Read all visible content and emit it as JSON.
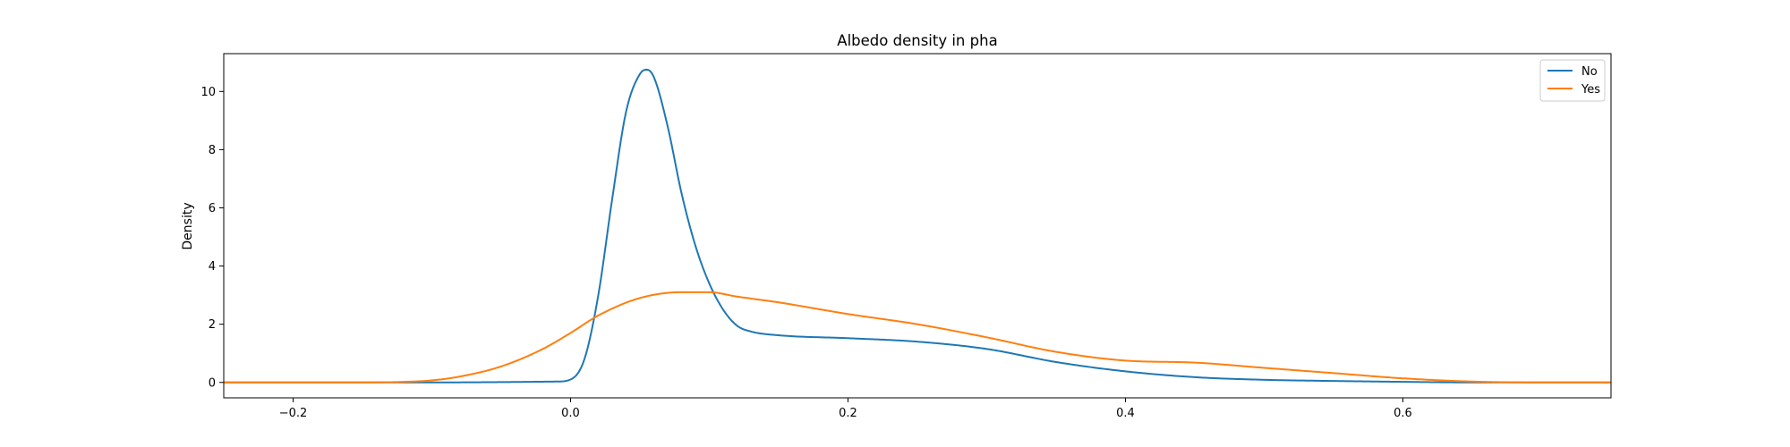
{
  "chart_data": {
    "type": "line",
    "title": "Albedo density in pha",
    "xlabel": "",
    "ylabel": "Density",
    "xlim": [
      -0.25,
      0.75
    ],
    "ylim": [
      -0.53,
      11.3
    ],
    "x_ticks": [
      -0.2,
      0.0,
      0.2,
      0.4,
      0.6
    ],
    "x_tick_labels": [
      "−0.2",
      "0.0",
      "0.2",
      "0.4",
      "0.6"
    ],
    "y_ticks": [
      0,
      2,
      4,
      6,
      8,
      10
    ],
    "y_tick_labels": [
      "0",
      "2",
      "4",
      "6",
      "8",
      "10"
    ],
    "grid": false,
    "legend_position": "top-right",
    "series": [
      {
        "name": "No",
        "color": "#1f77b4",
        "x": [
          -0.25,
          -0.1,
          -0.01,
          0.0,
          0.01,
          0.02,
          0.03,
          0.04,
          0.05,
          0.055,
          0.06,
          0.07,
          0.08,
          0.09,
          0.1,
          0.11,
          0.12,
          0.13,
          0.15,
          0.2,
          0.25,
          0.3,
          0.35,
          0.4,
          0.45,
          0.5,
          0.55,
          0.6,
          0.65,
          0.75
        ],
        "y": [
          0,
          0,
          0.03,
          0.1,
          0.8,
          3.0,
          6.3,
          9.3,
          10.6,
          10.75,
          10.5,
          8.8,
          6.5,
          4.7,
          3.4,
          2.5,
          1.95,
          1.75,
          1.62,
          1.52,
          1.4,
          1.15,
          0.7,
          0.38,
          0.18,
          0.09,
          0.05,
          0.02,
          0.0,
          0.0
        ]
      },
      {
        "name": "Yes",
        "color": "#ff7f0e",
        "x": [
          -0.25,
          -0.15,
          -0.12,
          -0.1,
          -0.08,
          -0.05,
          -0.02,
          0.0,
          0.02,
          0.05,
          0.08,
          0.1,
          0.12,
          0.15,
          0.2,
          0.25,
          0.3,
          0.35,
          0.4,
          0.45,
          0.5,
          0.55,
          0.6,
          0.65,
          0.7,
          0.75
        ],
        "y": [
          0.0,
          0.0,
          0.02,
          0.07,
          0.2,
          0.55,
          1.15,
          1.7,
          2.3,
          2.9,
          3.1,
          3.1,
          2.95,
          2.75,
          2.35,
          2.0,
          1.55,
          1.05,
          0.75,
          0.68,
          0.5,
          0.32,
          0.14,
          0.03,
          0.0,
          0.0
        ]
      }
    ]
  }
}
